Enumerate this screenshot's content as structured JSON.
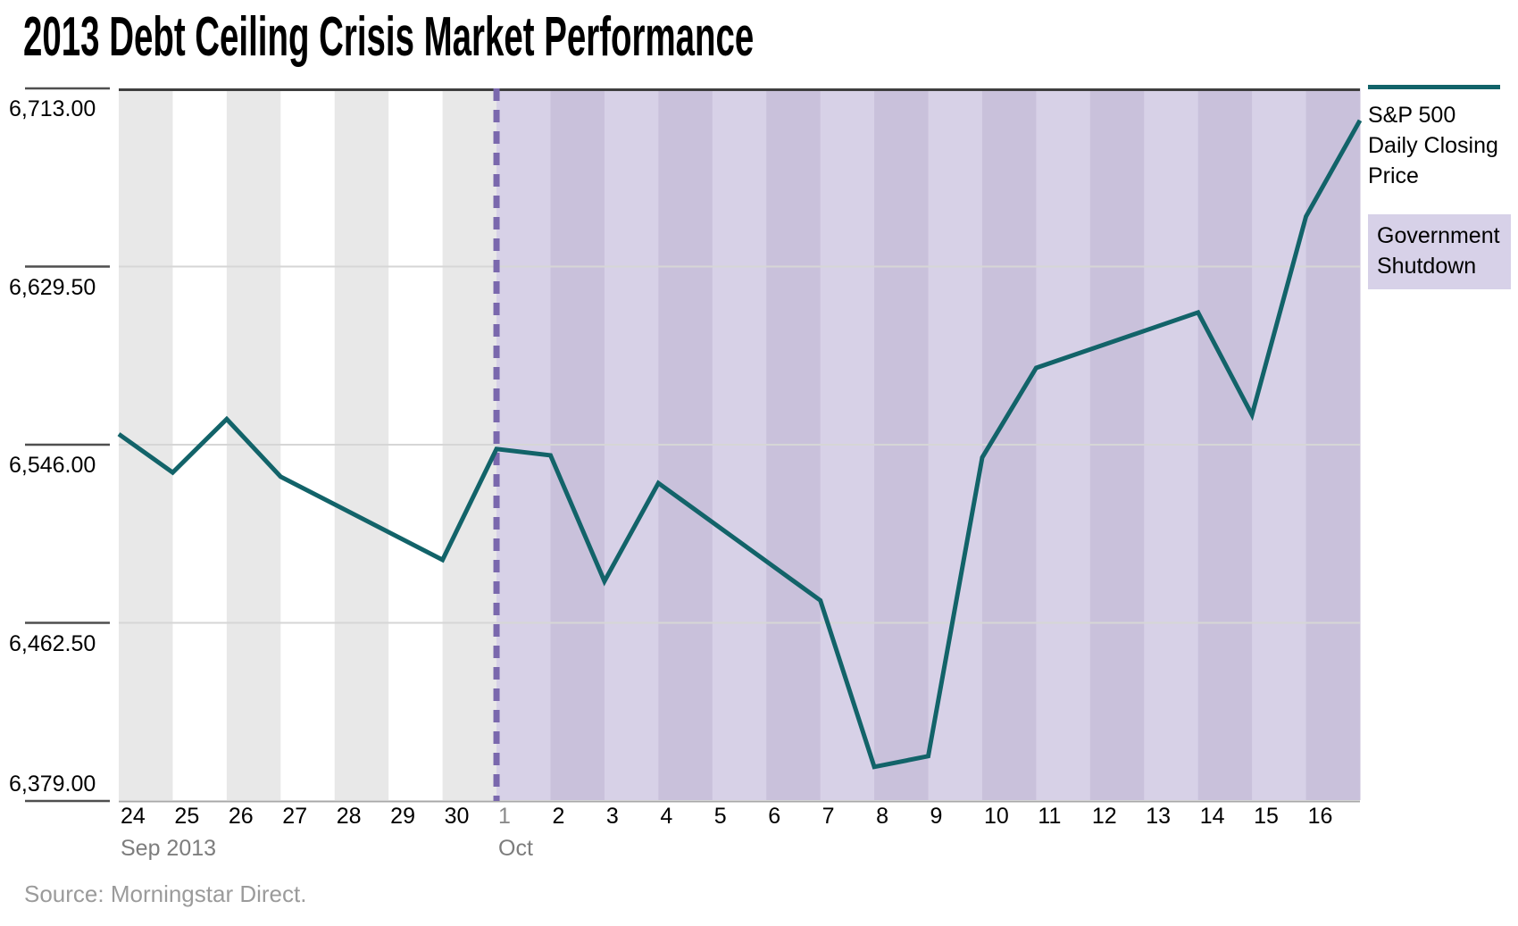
{
  "title": "2013 Debt Ceiling Crisis Market Performance",
  "source": "Source: Morningstar Direct.",
  "legend": {
    "series_label": "S&P 500\nDaily Closing\nPrice",
    "shutdown_label": "Government\nShutdown"
  },
  "chart_data": {
    "type": "line",
    "title": "2013 Debt Ceiling Crisis Market Performance",
    "grid": "horizontal",
    "legend_position": "right",
    "series": [
      {
        "name": "S&P 500 Daily Closing Price",
        "color": "#126369",
        "points": [
          {
            "date": "Sep 24",
            "day_index": 0,
            "value": 6551
          },
          {
            "date": "Sep 25",
            "day_index": 1,
            "value": 6533
          },
          {
            "date": "Sep 26",
            "day_index": 2,
            "value": 6558
          },
          {
            "date": "Sep 27",
            "day_index": 3,
            "value": 6531
          },
          {
            "date": "Sep 30",
            "day_index": 6,
            "value": 6492
          },
          {
            "date": "Oct 1",
            "day_index": 7,
            "value": 6544
          },
          {
            "date": "Oct 2",
            "day_index": 8,
            "value": 6541
          },
          {
            "date": "Oct 3",
            "day_index": 9,
            "value": 6482
          },
          {
            "date": "Oct 4",
            "day_index": 10,
            "value": 6528
          },
          {
            "date": "Oct 7",
            "day_index": 13,
            "value": 6473
          },
          {
            "date": "Oct 8",
            "day_index": 14,
            "value": 6395
          },
          {
            "date": "Oct 9",
            "day_index": 15,
            "value": 6400
          },
          {
            "date": "Oct 10",
            "day_index": 16,
            "value": 6540
          },
          {
            "date": "Oct 11",
            "day_index": 17,
            "value": 6582
          },
          {
            "date": "Oct 14",
            "day_index": 20,
            "value": 6608
          },
          {
            "date": "Oct 15",
            "day_index": 21,
            "value": 6560
          },
          {
            "date": "Oct 16",
            "day_index": 22,
            "value": 6653
          },
          {
            "date": "Oct 17",
            "day_index": 23,
            "value": 6698
          }
        ]
      }
    ],
    "x_axis": {
      "num_day_slots": 23,
      "day_ticks": [
        {
          "label": "24",
          "day_index": 0,
          "muted": false
        },
        {
          "label": "25",
          "day_index": 1,
          "muted": false
        },
        {
          "label": "26",
          "day_index": 2,
          "muted": false
        },
        {
          "label": "27",
          "day_index": 3,
          "muted": false
        },
        {
          "label": "28",
          "day_index": 4,
          "muted": false
        },
        {
          "label": "29",
          "day_index": 5,
          "muted": false
        },
        {
          "label": "30",
          "day_index": 6,
          "muted": false
        },
        {
          "label": "1",
          "day_index": 7,
          "muted": true
        },
        {
          "label": "2",
          "day_index": 8,
          "muted": false
        },
        {
          "label": "3",
          "day_index": 9,
          "muted": false
        },
        {
          "label": "4",
          "day_index": 10,
          "muted": false
        },
        {
          "label": "5",
          "day_index": 11,
          "muted": false
        },
        {
          "label": "6",
          "day_index": 12,
          "muted": false
        },
        {
          "label": "7",
          "day_index": 13,
          "muted": false
        },
        {
          "label": "8",
          "day_index": 14,
          "muted": false
        },
        {
          "label": "9",
          "day_index": 15,
          "muted": false
        },
        {
          "label": "10",
          "day_index": 16,
          "muted": false
        },
        {
          "label": "11",
          "day_index": 17,
          "muted": false
        },
        {
          "label": "12",
          "day_index": 18,
          "muted": false
        },
        {
          "label": "13",
          "day_index": 19,
          "muted": false
        },
        {
          "label": "14",
          "day_index": 20,
          "muted": false
        },
        {
          "label": "15",
          "day_index": 21,
          "muted": false
        },
        {
          "label": "16",
          "day_index": 22,
          "muted": false
        }
      ],
      "month_labels": [
        {
          "label": "Sep 2013",
          "day_index": 0
        },
        {
          "label": "Oct",
          "day_index": 7
        }
      ]
    },
    "y_axis": {
      "ylim": [
        6379,
        6713
      ],
      "ticks": [
        {
          "label": "6,713.00",
          "value": 6713
        },
        {
          "label": "6,629.50",
          "value": 6629.5
        },
        {
          "label": "6,546.00",
          "value": 6546
        },
        {
          "label": "6,462.50",
          "value": 6462.5
        },
        {
          "label": "6,379.00",
          "value": 6379
        }
      ]
    },
    "shutdown_region": {
      "label": "Government Shutdown",
      "start_day_index": 7,
      "end_day_index": 23
    },
    "colors": {
      "line": "#126369",
      "shutdown_dashed_line": "#7a68ad",
      "band_pre_shaded": "#e8e8e8",
      "band_pre_plain": "#ffffff",
      "band_shutdown_dark": "#c9c1db",
      "band_shutdown_light": "#d7d1e7",
      "legend_shutdown_bg": "#d7d1e8",
      "gridline": "#d6d6d6",
      "axis_top_border": "#3f3f3f",
      "axis_bottom_line": "#a8a8a8",
      "axis_tick": "#4f4f4f",
      "muted_text": "#8a8a8a"
    }
  }
}
